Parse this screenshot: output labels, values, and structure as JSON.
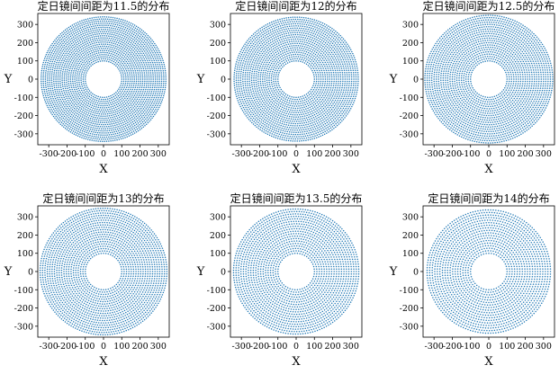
{
  "chart_data": [
    {
      "type": "scatter",
      "title": "定日镜间间距为11.5的分布",
      "spacing": 11.5,
      "xlabel": "X",
      "ylabel": "Y",
      "xlim": [
        -360,
        360
      ],
      "ylim": [
        -360,
        360
      ],
      "inner_radius": 100,
      "outer_radius": 350,
      "xticks": [
        "-300",
        "-200",
        "-100",
        "0",
        "100",
        "200",
        "300"
      ],
      "yticks": [
        "300",
        "200",
        "100",
        "0",
        "-100",
        "-200",
        "-300"
      ],
      "color": "#1f77b4"
    },
    {
      "type": "scatter",
      "title": "定日镜间间距为12的分布",
      "spacing": 12,
      "xlabel": "X",
      "ylabel": "Y",
      "xlim": [
        -360,
        360
      ],
      "ylim": [
        -360,
        360
      ],
      "inner_radius": 100,
      "outer_radius": 350,
      "xticks": [
        "-300",
        "-200",
        "-100",
        "0",
        "100",
        "200",
        "300"
      ],
      "yticks": [
        "300",
        "200",
        "100",
        "0",
        "-100",
        "-200",
        "-300"
      ],
      "color": "#1f77b4"
    },
    {
      "type": "scatter",
      "title": "定日镜间间距为12.5的分布",
      "spacing": 12.5,
      "xlabel": "X",
      "ylabel": "Y",
      "xlim": [
        -360,
        360
      ],
      "ylim": [
        -360,
        360
      ],
      "inner_radius": 100,
      "outer_radius": 350,
      "xticks": [
        "-300",
        "-200",
        "-100",
        "0",
        "100",
        "200",
        "300"
      ],
      "yticks": [
        "300",
        "200",
        "100",
        "0",
        "-100",
        "-200",
        "-300"
      ],
      "color": "#1f77b4"
    },
    {
      "type": "scatter",
      "title": "定日镜间间距为13的分布",
      "spacing": 13,
      "xlabel": "X",
      "ylabel": "Y",
      "xlim": [
        -360,
        360
      ],
      "ylim": [
        -360,
        360
      ],
      "inner_radius": 100,
      "outer_radius": 350,
      "xticks": [
        "-300",
        "-200",
        "-100",
        "0",
        "100",
        "200",
        "300"
      ],
      "yticks": [
        "300",
        "200",
        "100",
        "0",
        "-100",
        "-200",
        "-300"
      ],
      "color": "#1f77b4"
    },
    {
      "type": "scatter",
      "title": "定日镜间间距为13.5的分布",
      "spacing": 13.5,
      "xlabel": "X",
      "ylabel": "Y",
      "xlim": [
        -360,
        360
      ],
      "ylim": [
        -360,
        360
      ],
      "inner_radius": 100,
      "outer_radius": 350,
      "xticks": [
        "-300",
        "-200",
        "-100",
        "0",
        "100",
        "200",
        "300"
      ],
      "yticks": [
        "300",
        "200",
        "100",
        "0",
        "-100",
        "-200",
        "-300"
      ],
      "color": "#1f77b4"
    },
    {
      "type": "scatter",
      "title": "定日镜间间距为14的分布",
      "spacing": 14,
      "xlabel": "X",
      "ylabel": "Y",
      "xlim": [
        -360,
        360
      ],
      "ylim": [
        -360,
        360
      ],
      "inner_radius": 100,
      "outer_radius": 350,
      "xticks": [
        "-300",
        "-200",
        "-100",
        "0",
        "100",
        "200",
        "300"
      ],
      "yticks": [
        "300",
        "200",
        "100",
        "0",
        "-100",
        "-200",
        "-300"
      ],
      "color": "#1f77b4"
    }
  ]
}
